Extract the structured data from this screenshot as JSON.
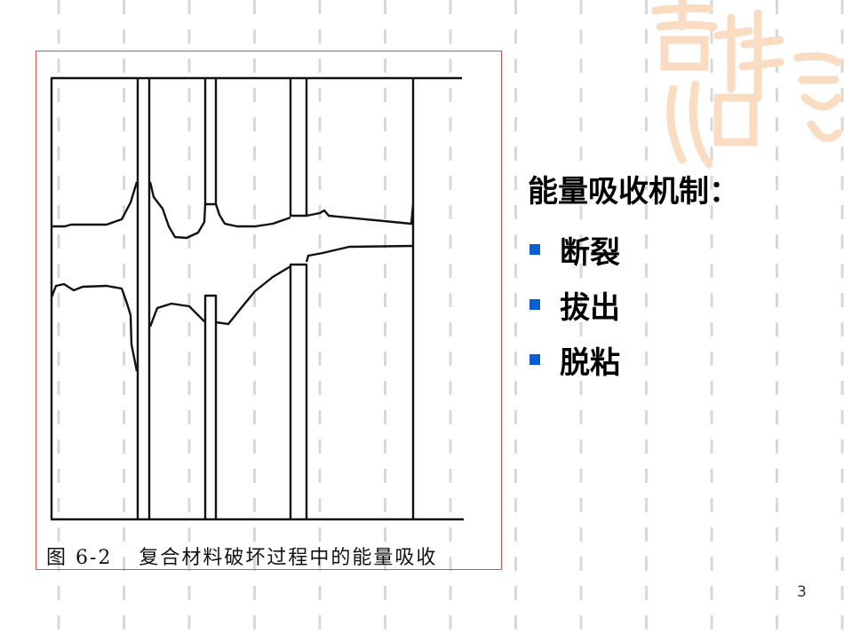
{
  "slide": {
    "heading": "能量吸收机制：",
    "bullets": [
      {
        "label": "断裂"
      },
      {
        "label": "拔出"
      },
      {
        "label": "脱粘"
      }
    ],
    "bullet_color": "#0a5fd0",
    "page_number": "3"
  },
  "figure": {
    "caption_number": "图 6-2",
    "caption_text": "复合材料破坏过程中的能量吸收",
    "border_color": "#e05050"
  },
  "watermark": {
    "text": "吉祥如意",
    "color": "#f9d9bd"
  }
}
